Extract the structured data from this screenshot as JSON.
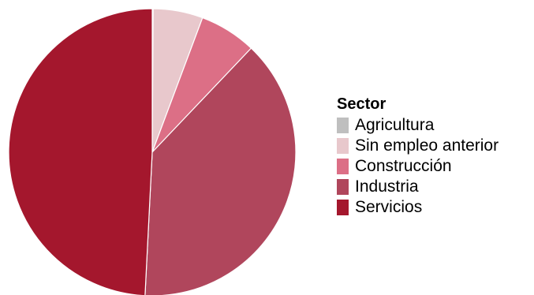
{
  "chart_data": {
    "type": "pie",
    "legend_title": "Sector",
    "legend_position": "right",
    "start_angle_deg": 0,
    "direction": "clockwise",
    "slices": [
      {
        "label": "Agricultura",
        "value": 0.1,
        "color": "#bfbfbf"
      },
      {
        "label": "Sin empleo anterior",
        "value": 5.6,
        "color": "#e8c8cc"
      },
      {
        "label": "Construcción",
        "value": 6.4,
        "color": "#dc6f86"
      },
      {
        "label": "Industria",
        "value": 38.7,
        "color": "#b0465c"
      },
      {
        "label": "Servicios",
        "value": 49.2,
        "color": "#a4172d"
      }
    ]
  }
}
